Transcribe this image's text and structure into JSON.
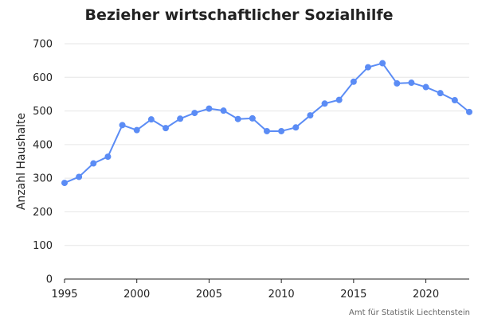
{
  "chart_data": {
    "type": "line",
    "title": "Bezieher wirtschaftlicher Sozialhilfe",
    "xlabel": "",
    "ylabel": "Anzahl Haushalte",
    "source": "Amt für Statistik Liechtenstein",
    "xlim": [
      1995,
      2023
    ],
    "ylim": [
      0,
      700
    ],
    "x_ticks": [
      1995,
      2000,
      2005,
      2010,
      2015,
      2020
    ],
    "y_ticks": [
      0,
      100,
      200,
      300,
      400,
      500,
      600,
      700
    ],
    "grid": true,
    "series": [
      {
        "color": "#5b8cf5",
        "x": [
          1995,
          1996,
          1997,
          1998,
          1999,
          2000,
          2001,
          2002,
          2003,
          2004,
          2005,
          2006,
          2007,
          2008,
          2009,
          2010,
          2011,
          2012,
          2013,
          2014,
          2015,
          2016,
          2017,
          2018,
          2019,
          2020,
          2021,
          2022,
          2023
        ],
        "y": [
          286,
          304,
          344,
          364,
          458,
          443,
          475,
          449,
          477,
          494,
          507,
          501,
          476,
          478,
          440,
          440,
          451,
          487,
          522,
          533,
          587,
          630,
          642,
          582,
          584,
          571,
          553,
          532,
          497
        ]
      }
    ]
  }
}
